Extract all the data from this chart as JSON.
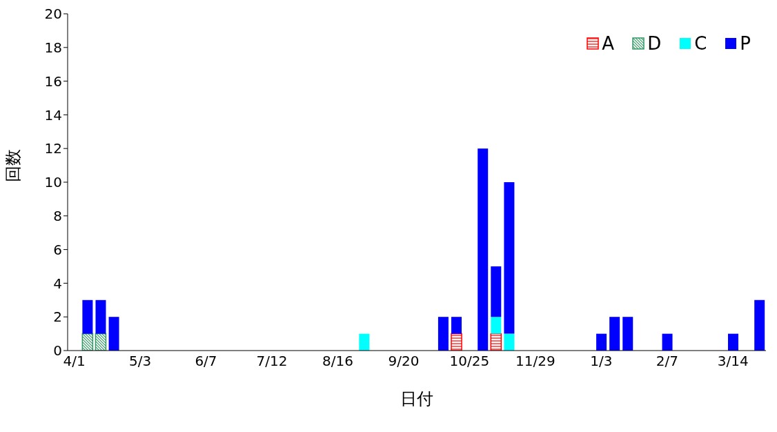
{
  "chart_data": {
    "type": "bar",
    "stacked": true,
    "xlabel": "日付",
    "ylabel": "回数",
    "categories": [
      "4/1",
      null,
      null,
      null,
      null,
      "5/3",
      null,
      null,
      null,
      null,
      "6/7",
      null,
      null,
      null,
      null,
      "7/12",
      null,
      null,
      null,
      null,
      "8/16",
      null,
      null,
      null,
      null,
      "9/20",
      null,
      null,
      null,
      null,
      "10/25",
      null,
      null,
      null,
      null,
      "11/29",
      null,
      null,
      null,
      null,
      "1/3",
      null,
      null,
      null,
      null,
      "2/7",
      null,
      null,
      null,
      null,
      "3/14",
      null,
      null
    ],
    "series": [
      {
        "name": "A",
        "color": "#ff0000",
        "values": [
          null,
          null,
          null,
          null,
          null,
          null,
          null,
          null,
          null,
          null,
          null,
          null,
          null,
          null,
          null,
          null,
          null,
          null,
          null,
          null,
          null,
          null,
          null,
          null,
          null,
          null,
          null,
          null,
          null,
          1,
          null,
          null,
          1,
          null,
          null,
          null,
          null,
          null,
          null,
          null,
          null,
          null,
          null,
          null,
          null,
          null,
          null,
          null,
          null,
          null,
          null,
          null,
          null
        ]
      },
      {
        "name": "D",
        "color": "#339966",
        "values": [
          null,
          1,
          1,
          null,
          null,
          null,
          null,
          null,
          null,
          null,
          null,
          null,
          null,
          null,
          null,
          null,
          null,
          null,
          null,
          null,
          null,
          null,
          null,
          null,
          null,
          null,
          null,
          null,
          null,
          null,
          null,
          null,
          null,
          null,
          null,
          null,
          null,
          null,
          null,
          null,
          null,
          null,
          null,
          null,
          null,
          null,
          null,
          null,
          null,
          null,
          null,
          null,
          null
        ]
      },
      {
        "name": "C",
        "color": "#00ffff",
        "values": [
          null,
          null,
          null,
          null,
          null,
          null,
          null,
          null,
          null,
          null,
          null,
          null,
          null,
          null,
          null,
          null,
          null,
          null,
          null,
          null,
          null,
          null,
          1,
          null,
          null,
          null,
          null,
          null,
          null,
          null,
          null,
          null,
          1,
          1,
          null,
          null,
          null,
          null,
          null,
          null,
          null,
          null,
          null,
          null,
          null,
          null,
          null,
          null,
          null,
          null,
          null,
          null,
          null
        ]
      },
      {
        "name": "P",
        "color": "#0000ff",
        "values": [
          null,
          2,
          2,
          2,
          null,
          null,
          null,
          null,
          null,
          null,
          null,
          null,
          null,
          null,
          null,
          null,
          null,
          null,
          null,
          null,
          null,
          null,
          null,
          null,
          null,
          null,
          null,
          null,
          2,
          1,
          null,
          12,
          3,
          9,
          null,
          null,
          null,
          null,
          null,
          null,
          1,
          2,
          2,
          null,
          null,
          1,
          null,
          null,
          null,
          null,
          1,
          null,
          3
        ]
      }
    ],
    "ylim": [
      0,
      20
    ],
    "yticks": [
      0,
      2,
      4,
      6,
      8,
      10,
      12,
      14,
      16,
      18,
      20
    ],
    "legend": "top right"
  }
}
